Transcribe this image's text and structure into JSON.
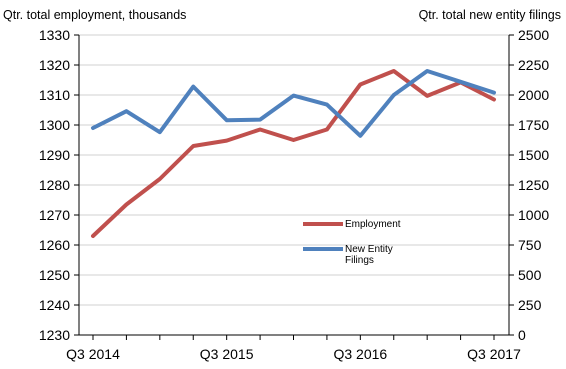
{
  "chart_data": {
    "type": "line",
    "left_axis_title": "Qtr. total employment, thousands",
    "right_axis_title": "Qtr. total  new entity filings",
    "x_tick_labels": [
      "Q3 2014",
      "Q3 2015",
      "Q3 2016",
      "Q3 2017"
    ],
    "left_ylim": [
      1230,
      1330
    ],
    "left_yticks": [
      "1330",
      "1320",
      "1310",
      "1300",
      "1290",
      "1280",
      "1270",
      "1260",
      "1250",
      "1240",
      "1230"
    ],
    "right_ylim": [
      0,
      2500
    ],
    "right_yticks": [
      "2500",
      "2250",
      "2000",
      "1750",
      "1500",
      "1250",
      "1000",
      "750",
      "500",
      "250",
      "0"
    ],
    "x": [
      "Q3 2014",
      "Q4 2014",
      "Q1 2015",
      "Q2 2015",
      "Q3 2015",
      "Q4 2015",
      "Q1 2016",
      "Q2 2016",
      "Q3 2016",
      "Q4 2016",
      "Q1 2017",
      "Q2 2017",
      "Q3 2017"
    ],
    "series": [
      {
        "name": "Employment",
        "axis": "left",
        "color": "#c0504d",
        "values": [
          1263,
          1273.5,
          1282,
          1293,
          1294.8,
          1298.5,
          1295,
          1298.5,
          1313.5,
          1318,
          1309.7,
          1314.2,
          1308.5
        ]
      },
      {
        "name": "New Entity Filings",
        "axis": "right",
        "color": "#4f81bd",
        "values": [
          1725,
          1865,
          1690,
          2070,
          1790,
          1795,
          1995,
          1920,
          1660,
          2000,
          2200,
          2110,
          2020
        ]
      }
    ],
    "legend": {
      "placement": "inside-lower-right",
      "entries": [
        {
          "label_lines": [
            "Employment"
          ]
        },
        {
          "label_lines": [
            "New Entity",
            "Filings"
          ]
        }
      ]
    },
    "grid": "horizontal"
  }
}
